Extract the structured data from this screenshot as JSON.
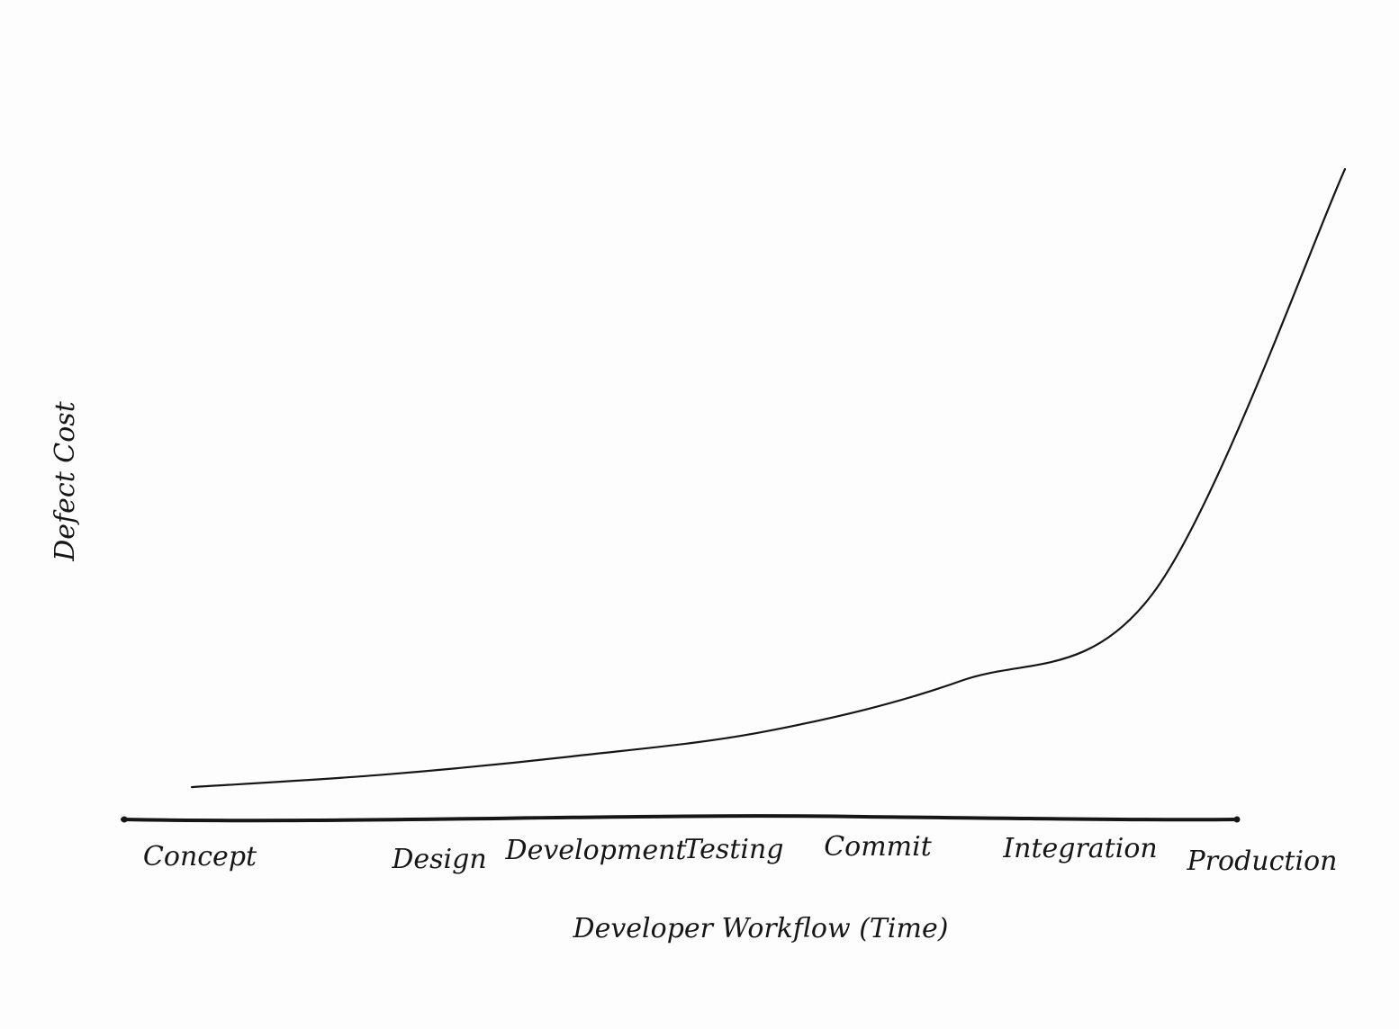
{
  "chart_data": {
    "type": "line",
    "title": "",
    "xlabel": "Developer Workflow (Time)",
    "ylabel": "Defect Cost",
    "categories": [
      "Concept",
      "Design",
      "Development",
      "Testing",
      "Commit",
      "Integration",
      "Production"
    ],
    "x": [
      0,
      1,
      2,
      3,
      4,
      5,
      6
    ],
    "series": [
      {
        "values": [
          1,
          3,
          6,
          10,
          18,
          32,
          100
        ]
      }
    ],
    "ylim": [
      0,
      100
    ],
    "grid": false,
    "legend": "none",
    "colors": {
      "ink": "#161616",
      "paper": "#fdfdfd"
    }
  }
}
